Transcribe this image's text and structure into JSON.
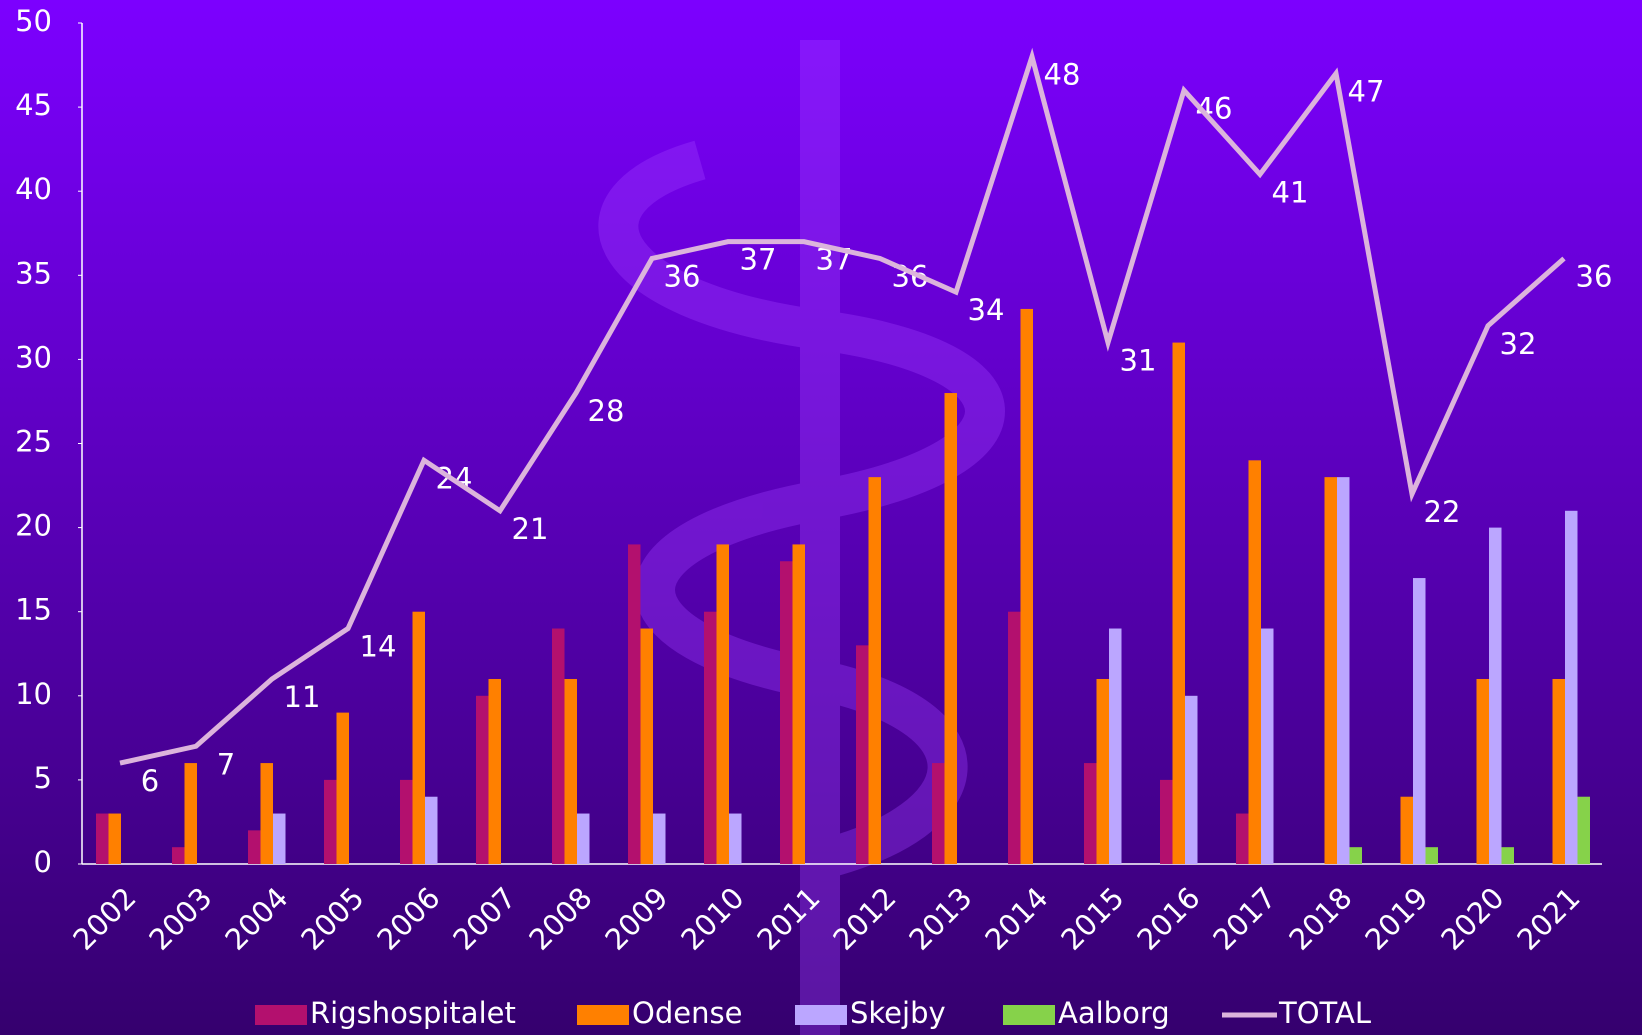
{
  "chart_data": {
    "type": "bar",
    "categories": [
      "2002",
      "2003",
      "2004",
      "2005",
      "2006",
      "2007",
      "2008",
      "2009",
      "2010",
      "2011",
      "2012",
      "2013",
      "2014",
      "2015",
      "2016",
      "2017",
      "2018",
      "2019",
      "2020",
      "2021"
    ],
    "series": [
      {
        "name": "Rigshospitalet",
        "color": "#b3106e",
        "values": [
          3,
          1,
          2,
          5,
          5,
          10,
          14,
          19,
          15,
          18,
          13,
          6,
          15,
          6,
          5,
          3,
          null,
          null,
          null,
          null
        ]
      },
      {
        "name": "Odense",
        "color": "#ff8000",
        "values": [
          3,
          6,
          6,
          9,
          15,
          11,
          11,
          14,
          19,
          19,
          23,
          28,
          33,
          11,
          31,
          24,
          23,
          4,
          11,
          11
        ]
      },
      {
        "name": "Skejby",
        "color": "#bba6ff",
        "values": [
          null,
          null,
          3,
          null,
          4,
          null,
          3,
          3,
          3,
          null,
          null,
          null,
          null,
          14,
          10,
          14,
          23,
          17,
          20,
          21
        ]
      },
      {
        "name": "Aalborg",
        "color": "#86d24a",
        "values": [
          null,
          null,
          null,
          null,
          null,
          null,
          null,
          null,
          null,
          null,
          null,
          null,
          null,
          null,
          null,
          null,
          1,
          1,
          1,
          4
        ]
      },
      {
        "name": "TOTAL",
        "type": "line",
        "color": "#dcb4dc",
        "values": [
          6,
          7,
          11,
          14,
          24,
          21,
          28,
          36,
          37,
          37,
          36,
          34,
          48,
          31,
          46,
          41,
          47,
          22,
          32,
          36
        ]
      }
    ],
    "ylim": [
      0,
      50
    ],
    "yticks": [
      0,
      5,
      10,
      15,
      20,
      25,
      30,
      35,
      40,
      45,
      50
    ],
    "grid": false,
    "legend": "bottom"
  }
}
